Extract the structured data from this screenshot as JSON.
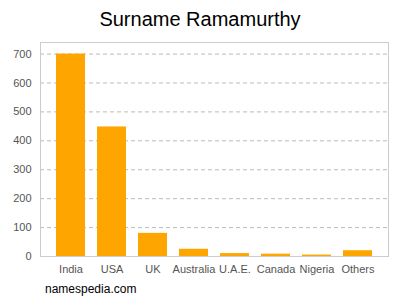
{
  "chart_data": {
    "type": "bar",
    "title": "Surname Ramamurthy",
    "caption": "namespedia.com",
    "categories": [
      "India",
      "USA",
      "UK",
      "Australia",
      "U.A.E.",
      "Canada",
      "Nigeria",
      "Others"
    ],
    "values": [
      700,
      448,
      80,
      25,
      10,
      8,
      5,
      20
    ],
    "color": "#ffa500",
    "ylim": [
      0,
      740
    ],
    "yticks": [
      0,
      100,
      200,
      300,
      400,
      500,
      600,
      700
    ],
    "grid": true
  }
}
